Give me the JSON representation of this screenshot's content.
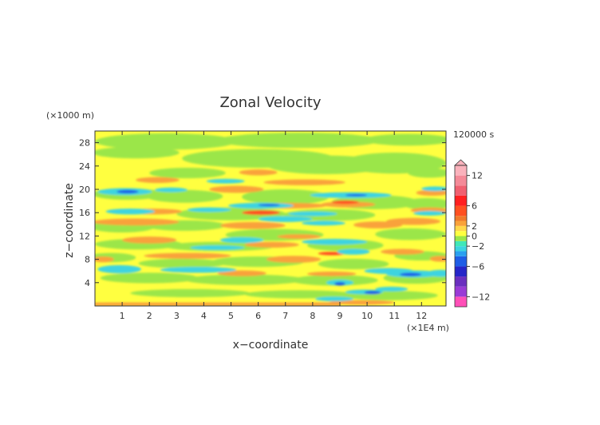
{
  "chart_data": {
    "type": "heatmap",
    "title": "Zonal Velocity",
    "xlabel": "x−coordinate",
    "ylabel": "z−coordinate",
    "x_unit": "(×1E4 m)",
    "y_unit": "(×1000 m)",
    "time_label": "120000 s",
    "xlim": [
      0,
      12.9
    ],
    "ylim": [
      0,
      30
    ],
    "x_ticks": [
      1,
      2,
      3,
      4,
      5,
      6,
      7,
      8,
      9,
      10,
      11,
      12
    ],
    "y_ticks": [
      4,
      8,
      12,
      16,
      20,
      24,
      28
    ],
    "colorbar": {
      "range": [
        -14,
        14
      ],
      "ticks": [
        12,
        6,
        2,
        0,
        -2,
        -6,
        -12
      ],
      "tick_labels": [
        "12",
        "6",
        "2",
        "0",
        "−2",
        "−6",
        "−12"
      ],
      "extend": "max",
      "levels": [
        {
          "min": -14,
          "max": -12,
          "color": "#ff4fb8"
        },
        {
          "min": -12,
          "max": -10,
          "color": "#9a3bd6"
        },
        {
          "min": -10,
          "max": -8,
          "color": "#6a2fbf"
        },
        {
          "min": -8,
          "max": -6,
          "color": "#2626c8"
        },
        {
          "min": -6,
          "max": -4,
          "color": "#1f5ee6"
        },
        {
          "min": -4,
          "max": -3,
          "color": "#2aa0f0"
        },
        {
          "min": -3,
          "max": -2,
          "color": "#3cd4e0"
        },
        {
          "min": -2,
          "max": -1,
          "color": "#40e8b8"
        },
        {
          "min": -1,
          "max": 0,
          "color": "#9be64a"
        },
        {
          "min": 0,
          "max": 1,
          "color": "#ffff40"
        },
        {
          "min": 1,
          "max": 2,
          "color": "#ffd84a"
        },
        {
          "min": 2,
          "max": 3,
          "color": "#f9a23a"
        },
        {
          "min": 3,
          "max": 4,
          "color": "#f07a2a"
        },
        {
          "min": 4,
          "max": 6,
          "color": "#ff5020"
        },
        {
          "min": 6,
          "max": 8,
          "color": "#ff2020"
        },
        {
          "min": 8,
          "max": 10,
          "color": "#f06070"
        },
        {
          "min": 10,
          "max": 12,
          "color": "#f48a98"
        },
        {
          "min": 12,
          "max": 14,
          "color": "#fab2bc"
        }
      ]
    }
  }
}
